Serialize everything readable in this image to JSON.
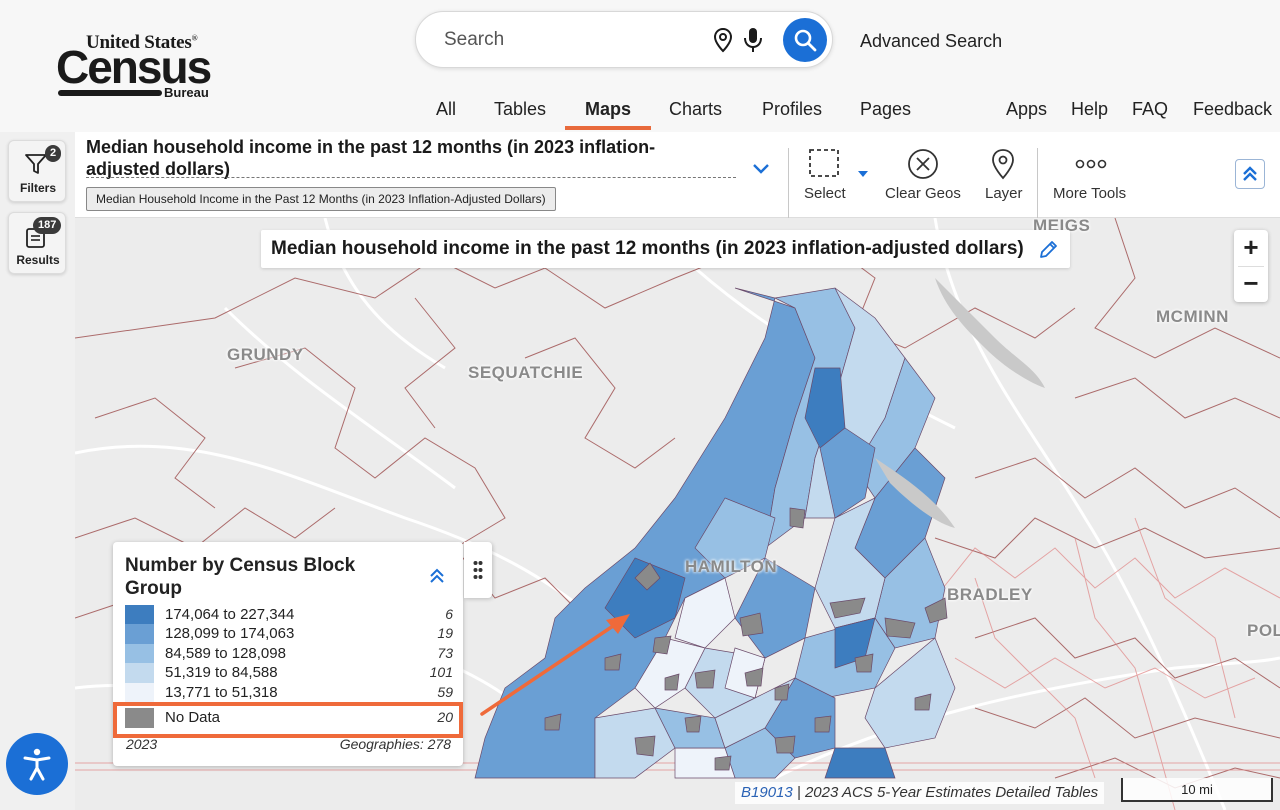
{
  "brand": {
    "top": "United States",
    "registered": "®",
    "main": "Census",
    "sub": "Bureau"
  },
  "search": {
    "placeholder": "Search",
    "advanced_label": "Advanced Search"
  },
  "nav": {
    "tabs": [
      {
        "label": "All"
      },
      {
        "label": "Tables"
      },
      {
        "label": "Maps",
        "active": true
      },
      {
        "label": "Charts"
      },
      {
        "label": "Profiles"
      },
      {
        "label": "Pages"
      }
    ],
    "links": [
      "Apps",
      "Help",
      "FAQ",
      "Feedback"
    ]
  },
  "rail": {
    "filters": {
      "label": "Filters",
      "count": "2"
    },
    "results": {
      "label": "Results",
      "count": "187"
    }
  },
  "toolbar": {
    "title": "Median household income in the past 12 months (in 2023 inflation-adjusted dollars)",
    "table_chip": "Median Household Income in the Past 12 Months (in 2023 Inflation-Adjusted Dollars)",
    "tools": {
      "select": "Select",
      "clear_geos": "Clear Geos",
      "layer": "Layer",
      "more_tools": "More Tools"
    }
  },
  "map": {
    "title": "Median household income in the past 12 months (in 2023 inflation-adjusted dollars)",
    "counties": [
      "MEIGS",
      "MCMINN",
      "GRUNDY",
      "SEQUATCHIE",
      "HAMILTON",
      "BRADLEY",
      "POL"
    ],
    "zoom_in": "+",
    "zoom_out": "−",
    "attribution_code": "B19013",
    "attribution_text": "2023 ACS 5-Year Estimates Detailed Tables",
    "scale": "10 mi"
  },
  "legend": {
    "title": "Number by Census Block Group",
    "rows": [
      {
        "range": "174,064 to 227,344",
        "count": "6",
        "color": "#3d7dbf"
      },
      {
        "range": "128,099 to 174,063",
        "count": "19",
        "color": "#6a9fd4"
      },
      {
        "range": "84,589 to 128,098",
        "count": "73",
        "color": "#97c0e4"
      },
      {
        "range": "51,319 to 84,588",
        "count": "101",
        "color": "#c3daee"
      },
      {
        "range": "13,771 to 51,318",
        "count": "59",
        "color": "#eef3fa"
      },
      {
        "range": "No Data",
        "count": "20",
        "color": "#8a8a8a"
      }
    ],
    "year": "2023",
    "geographies": "Geographies: 278"
  },
  "colors": {
    "accent": "#1b6fd6",
    "highlight": "#ef6a3a"
  }
}
